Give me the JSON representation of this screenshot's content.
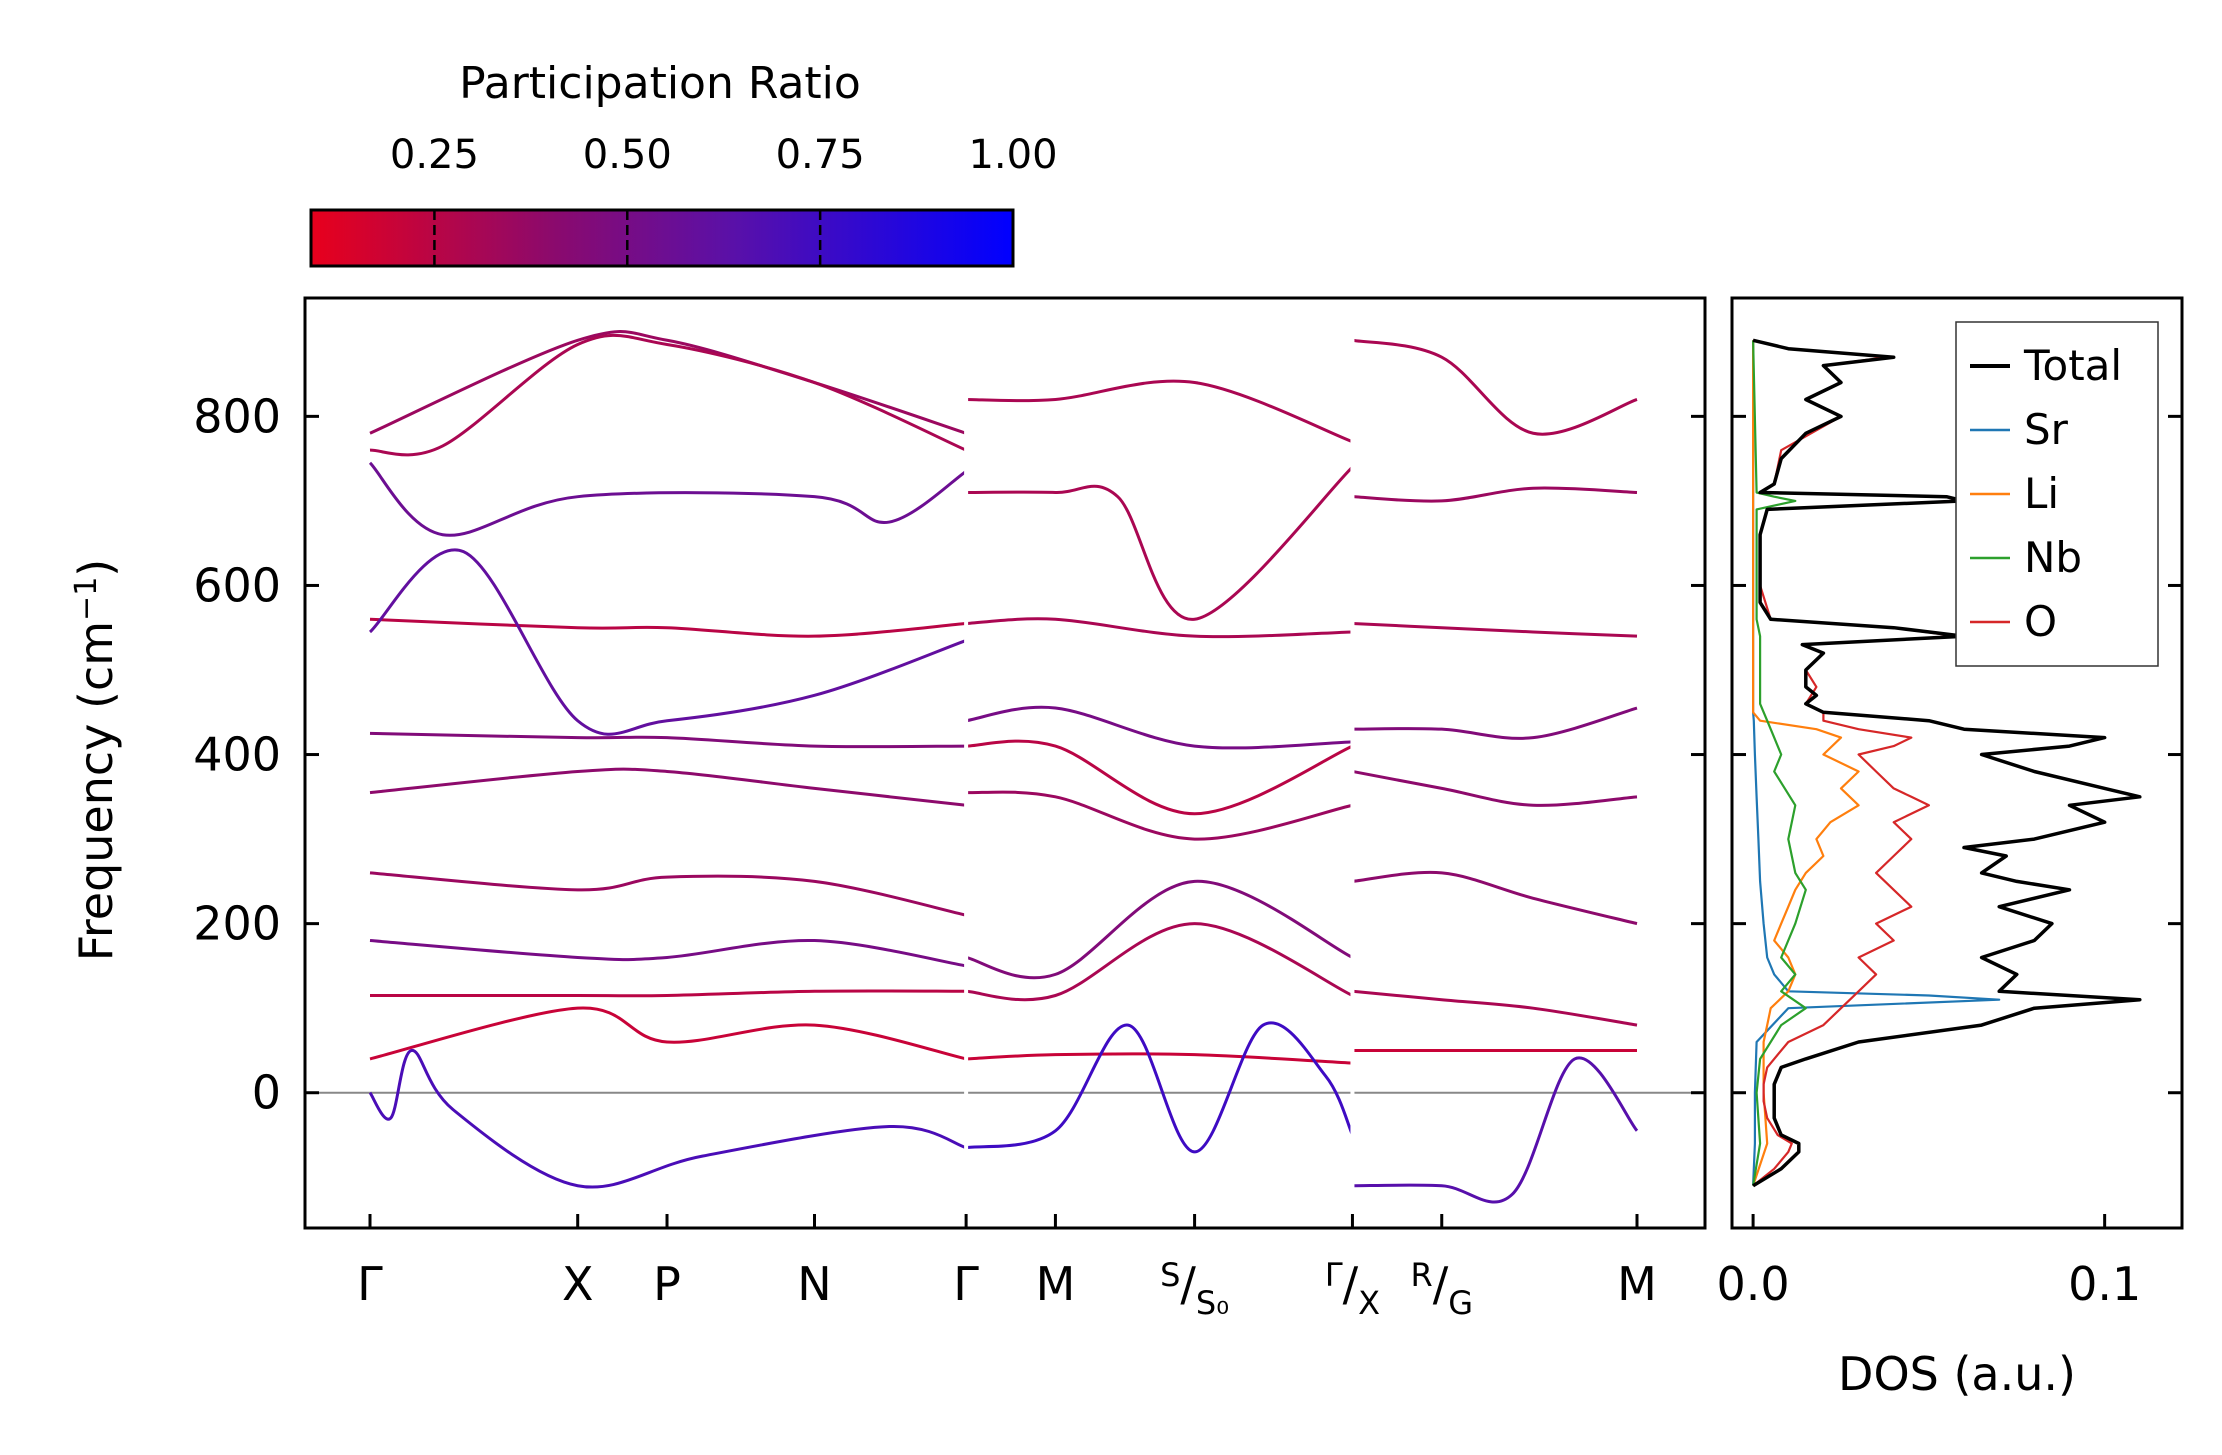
{
  "chart_data": [
    {
      "type": "line",
      "panel": "phonon-band-structure",
      "ylabel": "Frequency (cm⁻¹)",
      "ylim": [
        -160,
        940
      ],
      "yticks": [
        0,
        200,
        400,
        600,
        800
      ],
      "ytick_labels": [
        "0",
        "200",
        "400",
        "600",
        "800"
      ],
      "kpath_labels": [
        "Γ",
        "X",
        "P",
        "N",
        "Γ",
        "M",
        "S/S₀",
        "Γ/X",
        "R/G",
        "M"
      ],
      "kpath_positions": [
        0.0,
        1.0,
        1.43,
        2.14,
        2.87,
        3.3,
        3.97,
        4.73,
        5.16,
        6.1
      ],
      "segment_breaks": [
        2.87,
        4.73
      ],
      "zero_line": true,
      "colorbar": {
        "label": "Participation Ratio",
        "ticks": [
          0.25,
          0.5,
          0.75,
          1.0
        ],
        "tick_labels": [
          "0.25",
          "0.50",
          "0.75",
          "1.00"
        ],
        "range": [
          0.09,
          1.0
        ],
        "colors": [
          "#e8001c",
          "#8a0a6e",
          "#5a10a8",
          "#0000ff"
        ]
      },
      "representative_bands": [
        {
          "x": [
            0,
            1.0,
            1.43,
            2.14,
            2.87
          ],
          "y": [
            780,
            890,
            890,
            840,
            780
          ],
          "pr": 0.35
        },
        {
          "x": [
            0,
            0.35,
            1.0,
            1.43,
            2.14,
            2.87
          ],
          "y": [
            760,
            765,
            885,
            885,
            840,
            760
          ],
          "pr": 0.3
        },
        {
          "x": [
            0,
            0.35,
            1.0,
            2.14,
            2.5,
            2.87
          ],
          "y": [
            745,
            660,
            705,
            705,
            675,
            735
          ],
          "pr": 0.55
        },
        {
          "x": [
            0,
            1.0,
            1.43,
            2.14,
            2.87
          ],
          "y": [
            560,
            550,
            550,
            540,
            555
          ],
          "pr": 0.25
        },
        {
          "x": [
            0,
            0.45,
            1.0,
            1.43,
            2.14,
            2.87
          ],
          "y": [
            545,
            640,
            440,
            440,
            470,
            535
          ],
          "pr": 0.6
        },
        {
          "x": [
            0,
            1.0,
            1.43,
            2.14,
            2.87
          ],
          "y": [
            425,
            420,
            420,
            410,
            410
          ],
          "pr": 0.45
        },
        {
          "x": [
            0,
            1.0,
            1.43,
            2.14,
            2.87
          ],
          "y": [
            355,
            380,
            380,
            360,
            340
          ],
          "pr": 0.4
        },
        {
          "x": [
            0,
            1.0,
            1.43,
            2.14,
            2.87
          ],
          "y": [
            260,
            240,
            255,
            250,
            210
          ],
          "pr": 0.35
        },
        {
          "x": [
            0,
            1.0,
            1.43,
            2.14,
            2.87
          ],
          "y": [
            180,
            160,
            160,
            180,
            150
          ],
          "pr": 0.5
        },
        {
          "x": [
            0,
            1.0,
            1.43,
            2.14,
            2.87
          ],
          "y": [
            115,
            115,
            115,
            120,
            120
          ],
          "pr": 0.25
        },
        {
          "x": [
            0,
            1.0,
            1.43,
            2.14,
            2.87
          ],
          "y": [
            40,
            100,
            60,
            80,
            40
          ],
          "pr": 0.2
        },
        {
          "x": [
            0,
            0.1,
            0.2,
            0.4,
            1.0,
            1.6,
            2.5,
            2.87
          ],
          "y": [
            0,
            -30,
            50,
            -20,
            -110,
            -75,
            -40,
            -65
          ],
          "pr": 0.7
        },
        {
          "x": [
            2.87,
            3.3,
            3.97,
            4.73
          ],
          "y": [
            820,
            820,
            840,
            770
          ],
          "pr": 0.3
        },
        {
          "x": [
            2.87,
            3.3,
            3.6,
            3.97,
            4.73
          ],
          "y": [
            710,
            710,
            705,
            560,
            740
          ],
          "pr": 0.3
        },
        {
          "x": [
            2.87,
            3.3,
            3.97,
            4.73
          ],
          "y": [
            555,
            560,
            540,
            545
          ],
          "pr": 0.3
        },
        {
          "x": [
            2.87,
            3.3,
            3.97,
            4.73
          ],
          "y": [
            440,
            455,
            410,
            415
          ],
          "pr": 0.5
        },
        {
          "x": [
            2.87,
            3.3,
            3.97,
            4.73
          ],
          "y": [
            410,
            410,
            330,
            410
          ],
          "pr": 0.25
        },
        {
          "x": [
            2.87,
            3.3,
            3.97,
            4.73
          ],
          "y": [
            355,
            350,
            300,
            340
          ],
          "pr": 0.35
        },
        {
          "x": [
            2.87,
            3.3,
            3.97,
            4.73
          ],
          "y": [
            160,
            140,
            250,
            160
          ],
          "pr": 0.45
        },
        {
          "x": [
            2.87,
            3.3,
            3.97,
            4.73
          ],
          "y": [
            120,
            115,
            200,
            115
          ],
          "pr": 0.3
        },
        {
          "x": [
            2.87,
            3.3,
            3.97,
            4.73
          ],
          "y": [
            40,
            45,
            45,
            35
          ],
          "pr": 0.2
        },
        {
          "x": [
            2.87,
            3.3,
            3.65,
            3.97,
            4.3,
            4.6,
            4.73
          ],
          "y": [
            -65,
            -45,
            80,
            -70,
            80,
            20,
            -50
          ],
          "pr": 0.75
        },
        {
          "x": [
            4.73,
            5.16,
            5.6,
            6.1
          ],
          "y": [
            890,
            870,
            780,
            820
          ],
          "pr": 0.3
        },
        {
          "x": [
            4.73,
            5.16,
            5.6,
            6.1
          ],
          "y": [
            705,
            700,
            715,
            710
          ],
          "pr": 0.35
        },
        {
          "x": [
            4.73,
            5.16,
            5.6,
            6.1
          ],
          "y": [
            555,
            550,
            545,
            540
          ],
          "pr": 0.3
        },
        {
          "x": [
            4.73,
            5.16,
            5.6,
            6.1
          ],
          "y": [
            430,
            430,
            420,
            455
          ],
          "pr": 0.45
        },
        {
          "x": [
            4.73,
            5.16,
            5.6,
            6.1
          ],
          "y": [
            380,
            360,
            340,
            350
          ],
          "pr": 0.4
        },
        {
          "x": [
            4.73,
            5.16,
            5.6,
            6.1
          ],
          "y": [
            250,
            260,
            230,
            200
          ],
          "pr": 0.4
        },
        {
          "x": [
            4.73,
            5.16,
            5.6,
            6.1
          ],
          "y": [
            120,
            110,
            100,
            80
          ],
          "pr": 0.3
        },
        {
          "x": [
            4.73,
            5.16,
            5.6,
            6.1
          ],
          "y": [
            50,
            50,
            50,
            50
          ],
          "pr": 0.2
        },
        {
          "x": [
            4.73,
            5.16,
            5.5,
            5.8,
            6.1
          ],
          "y": [
            -110,
            -110,
            -120,
            40,
            -45
          ],
          "pr": 0.65
        }
      ]
    },
    {
      "type": "line",
      "panel": "density-of-states",
      "xlabel": "DOS (a.u.)",
      "xlim": [
        -0.006,
        0.122
      ],
      "ylim": [
        -160,
        940
      ],
      "xticks": [
        0.0,
        0.1
      ],
      "xtick_labels": [
        "0.0",
        "0.1"
      ],
      "legend": {
        "position": "top-right",
        "entries": [
          "Total",
          "Sr",
          "Li",
          "Nb",
          "O"
        ]
      },
      "series": [
        {
          "name": "Total",
          "color": "#000000",
          "freq": [
            -110,
            -90,
            -70,
            -60,
            -50,
            -30,
            -10,
            10,
            30,
            40,
            60,
            80,
            100,
            110,
            120,
            140,
            160,
            180,
            200,
            220,
            240,
            250,
            260,
            280,
            290,
            300,
            320,
            340,
            350,
            360,
            380,
            400,
            410,
            420,
            430,
            440,
            450,
            460,
            470,
            480,
            500,
            520,
            530,
            540,
            550,
            560,
            580,
            600,
            620,
            660,
            690,
            700,
            705,
            710,
            720,
            750,
            780,
            800,
            820,
            840,
            860,
            870,
            880,
            890
          ],
          "dos": [
            0.0,
            0.008,
            0.013,
            0.013,
            0.008,
            0.006,
            0.006,
            0.006,
            0.008,
            0.015,
            0.03,
            0.065,
            0.08,
            0.11,
            0.07,
            0.075,
            0.065,
            0.08,
            0.085,
            0.07,
            0.09,
            0.075,
            0.065,
            0.072,
            0.06,
            0.08,
            0.1,
            0.09,
            0.11,
            0.1,
            0.08,
            0.065,
            0.09,
            0.1,
            0.06,
            0.05,
            0.02,
            0.015,
            0.018,
            0.015,
            0.015,
            0.02,
            0.014,
            0.06,
            0.04,
            0.005,
            0.002,
            0.002,
            0.002,
            0.002,
            0.004,
            0.06,
            0.055,
            0.002,
            0.006,
            0.008,
            0.015,
            0.025,
            0.015,
            0.025,
            0.02,
            0.04,
            0.01,
            0.0
          ]
        },
        {
          "name": "Sr",
          "color": "#1f77b4",
          "freq": [
            -110,
            -60,
            0,
            60,
            100,
            110,
            115,
            120,
            140,
            160,
            200,
            250,
            300,
            350,
            400,
            440,
            450,
            890
          ],
          "dos": [
            0.0,
            0.0005,
            0.0005,
            0.001,
            0.01,
            0.07,
            0.05,
            0.01,
            0.006,
            0.004,
            0.003,
            0.002,
            0.0015,
            0.001,
            0.0005,
            0.0002,
            0.0,
            0.0
          ]
        },
        {
          "name": "Li",
          "color": "#ff7f0e",
          "freq": [
            -110,
            -60,
            0,
            60,
            80,
            100,
            120,
            140,
            160,
            180,
            200,
            220,
            240,
            260,
            280,
            300,
            320,
            340,
            360,
            380,
            400,
            420,
            430,
            440,
            450,
            890
          ],
          "dos": [
            0.0,
            0.004,
            0.003,
            0.003,
            0.004,
            0.005,
            0.01,
            0.012,
            0.01,
            0.006,
            0.008,
            0.01,
            0.012,
            0.015,
            0.02,
            0.018,
            0.022,
            0.03,
            0.025,
            0.03,
            0.02,
            0.025,
            0.018,
            0.002,
            0.0,
            0.0
          ]
        },
        {
          "name": "Nb",
          "color": "#2ca02c",
          "freq": [
            -110,
            -60,
            0,
            40,
            80,
            100,
            120,
            140,
            160,
            200,
            240,
            260,
            300,
            340,
            380,
            400,
            420,
            440,
            460,
            540,
            560,
            690,
            700,
            705,
            710,
            890
          ],
          "dos": [
            0.0,
            0.002,
            0.001,
            0.002,
            0.008,
            0.015,
            0.008,
            0.012,
            0.008,
            0.012,
            0.015,
            0.012,
            0.01,
            0.012,
            0.006,
            0.008,
            0.006,
            0.004,
            0.002,
            0.002,
            0.001,
            0.001,
            0.012,
            0.006,
            0.001,
            0.0
          ]
        },
        {
          "name": "O",
          "color": "#d62728",
          "freq": [
            -110,
            -90,
            -70,
            -60,
            -50,
            -30,
            -10,
            10,
            30,
            40,
            60,
            80,
            100,
            120,
            140,
            160,
            180,
            200,
            220,
            240,
            260,
            280,
            300,
            320,
            340,
            350,
            360,
            380,
            400,
            410,
            420,
            430,
            440,
            450,
            460,
            480,
            500,
            520,
            530,
            540,
            550,
            560,
            600,
            660,
            690,
            700,
            705,
            710,
            720,
            760,
            800,
            820,
            840,
            860,
            870,
            880,
            890
          ],
          "dos": [
            0.0,
            0.006,
            0.01,
            0.011,
            0.007,
            0.004,
            0.003,
            0.003,
            0.004,
            0.006,
            0.01,
            0.02,
            0.025,
            0.03,
            0.035,
            0.03,
            0.04,
            0.035,
            0.045,
            0.04,
            0.035,
            0.04,
            0.045,
            0.04,
            0.05,
            0.045,
            0.04,
            0.035,
            0.03,
            0.04,
            0.045,
            0.03,
            0.02,
            0.02,
            0.015,
            0.018,
            0.015,
            0.02,
            0.014,
            0.058,
            0.04,
            0.005,
            0.002,
            0.002,
            0.004,
            0.058,
            0.055,
            0.002,
            0.006,
            0.008,
            0.025,
            0.015,
            0.025,
            0.02,
            0.038,
            0.01,
            0.0
          ]
        }
      ]
    }
  ]
}
